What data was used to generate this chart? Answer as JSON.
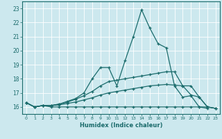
{
  "title": "",
  "xlabel": "Humidex (Indice chaleur)",
  "xlim": [
    -0.5,
    23.5
  ],
  "ylim": [
    15.5,
    23.5
  ],
  "yticks": [
    16,
    17,
    18,
    19,
    20,
    21,
    22,
    23
  ],
  "xticks": [
    0,
    1,
    2,
    3,
    4,
    5,
    6,
    7,
    8,
    9,
    10,
    11,
    12,
    13,
    14,
    15,
    16,
    17,
    18,
    19,
    20,
    21,
    22,
    23
  ],
  "background_color": "#cce8ee",
  "line_color": "#1a6b6b",
  "grid_color": "#ffffff",
  "series": [
    [
      16.3,
      16.0,
      16.1,
      16.0,
      16.0,
      16.0,
      16.0,
      16.0,
      16.0,
      16.0,
      16.0,
      16.0,
      16.0,
      16.0,
      16.0,
      16.0,
      16.0,
      16.0,
      16.0,
      16.0,
      16.0,
      16.0,
      16.0,
      15.9
    ],
    [
      16.3,
      16.0,
      16.1,
      16.1,
      16.15,
      16.25,
      16.35,
      16.5,
      16.65,
      16.85,
      17.0,
      17.1,
      17.2,
      17.3,
      17.4,
      17.5,
      17.55,
      17.6,
      17.55,
      17.5,
      17.5,
      16.7,
      16.0,
      15.9
    ],
    [
      16.3,
      16.0,
      16.1,
      16.1,
      16.2,
      16.35,
      16.55,
      16.8,
      17.1,
      17.5,
      17.8,
      17.9,
      18.0,
      18.1,
      18.2,
      18.3,
      18.4,
      18.5,
      18.5,
      17.5,
      16.85,
      16.7,
      16.0,
      15.9
    ],
    [
      16.3,
      16.0,
      16.1,
      16.1,
      16.2,
      16.4,
      16.6,
      17.0,
      18.0,
      18.8,
      18.8,
      17.5,
      19.3,
      21.0,
      22.9,
      21.6,
      20.5,
      20.2,
      17.5,
      16.7,
      16.8,
      16.0,
      15.9,
      null
    ]
  ]
}
